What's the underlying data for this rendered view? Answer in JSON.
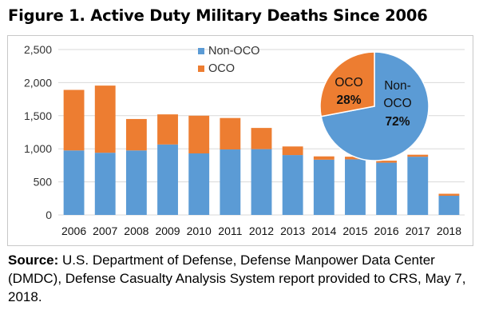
{
  "figure_title": "Figure 1. Active Duty Military Deaths Since 2006",
  "source": {
    "label": "Source:",
    "text": "U.S. Department of Defense, Defense Manpower Data Center (DMDC), Defense Casualty Analysis System report provided to CRS, May 7, 2018."
  },
  "chart_data": [
    {
      "type": "bar",
      "stacked": true,
      "categories": [
        "2006",
        "2007",
        "2008",
        "2009",
        "2010",
        "2011",
        "2012",
        "2013",
        "2014",
        "2015",
        "2016",
        "2017",
        "2018"
      ],
      "series": [
        {
          "name": "Non-OCO",
          "color": "#5b9bd5",
          "values": [
            975,
            940,
            975,
            1065,
            930,
            990,
            995,
            905,
            835,
            840,
            790,
            880,
            290
          ]
        },
        {
          "name": "OCO",
          "color": "#ed7d31",
          "values": [
            915,
            1015,
            475,
            455,
            570,
            475,
            320,
            130,
            50,
            40,
            30,
            30,
            30
          ]
        }
      ],
      "ylim": [
        0,
        2500
      ],
      "yticks": [
        "0",
        "500",
        "1,000",
        "1,500",
        "2,000",
        "2,500"
      ],
      "ytick_values": [
        0,
        500,
        1000,
        1500,
        2000,
        2500
      ],
      "grid": true,
      "legend": "top-center"
    },
    {
      "type": "pie",
      "slices": [
        {
          "name": "Non-\nOCO",
          "label": "72%",
          "value": 72,
          "color": "#5b9bd5"
        },
        {
          "name": "OCO",
          "label": "28%",
          "value": 28,
          "color": "#ed7d31"
        }
      ]
    }
  ]
}
